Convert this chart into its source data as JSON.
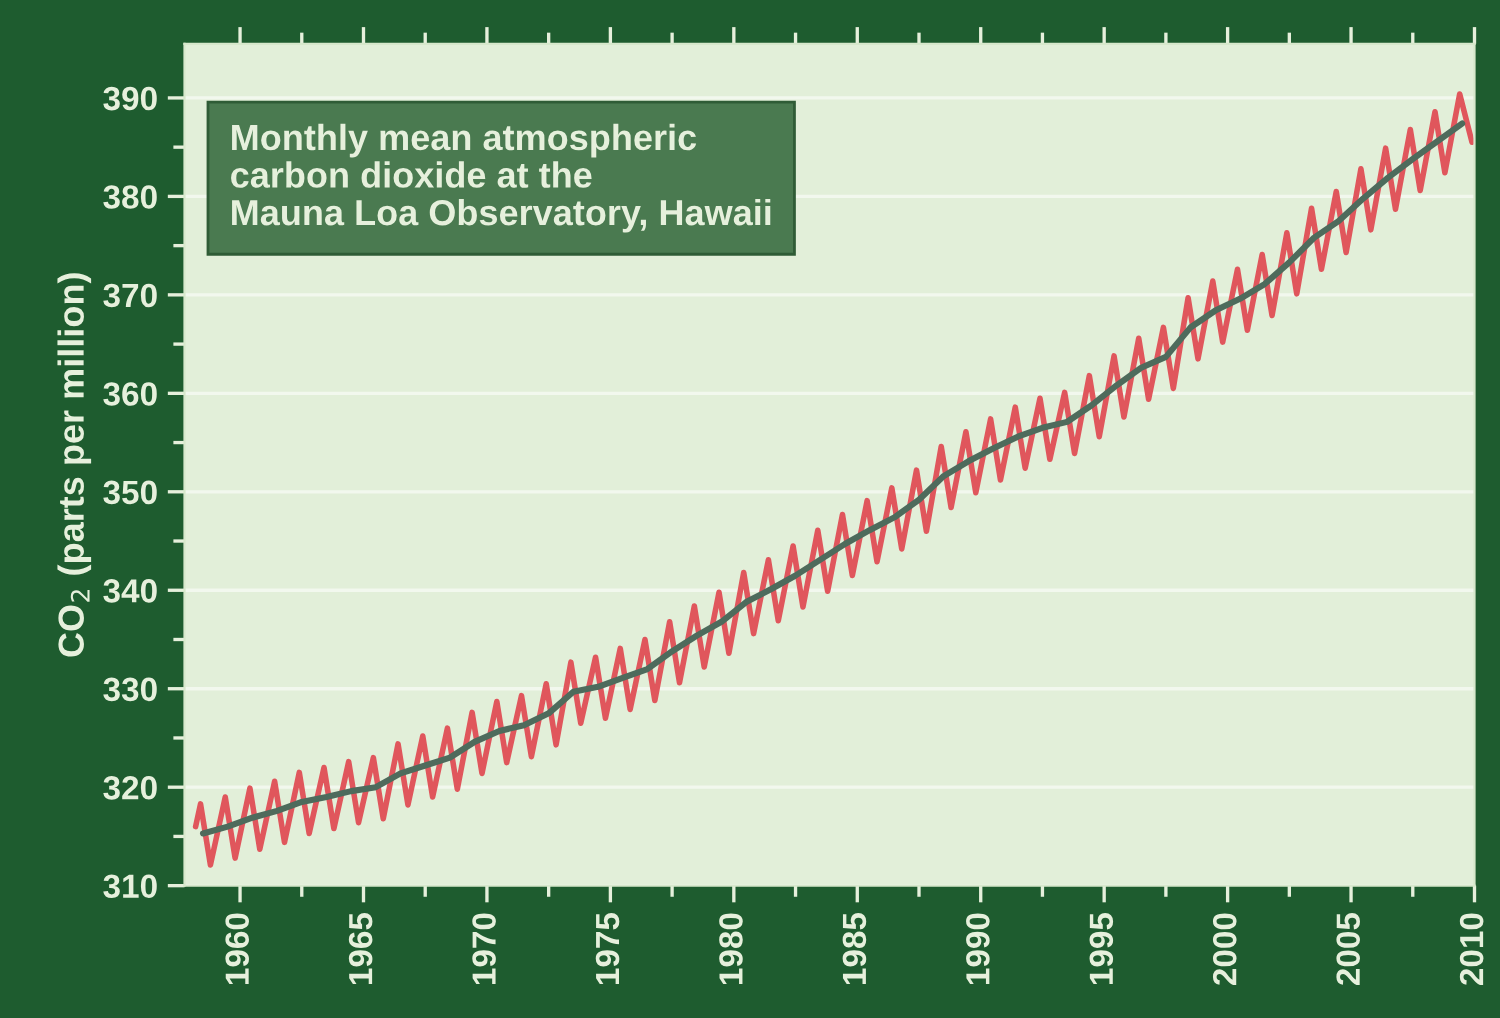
{
  "chart_data": {
    "type": "line",
    "ylabel": "CO$_{2}$ (parts per million)",
    "annotations": [
      "Monthly mean atmospheric\ncarbon dioxide at the\nMauna Loa Observatory, Hawaii"
    ],
    "series": [
      {
        "color": "#e0565c",
        "x": [
          1958.2,
          1958.4,
          1958.8,
          1959.4,
          1959.8,
          1960.4,
          1960.8,
          1961.4,
          1961.8,
          1962.4,
          1962.8,
          1963.4,
          1963.8,
          1964.4,
          1964.8,
          1965.4,
          1965.8,
          1966.4,
          1966.8,
          1967.4,
          1967.8,
          1968.4,
          1968.8,
          1969.4,
          1969.8,
          1970.4,
          1970.8,
          1971.4,
          1971.8,
          1972.4,
          1972.8,
          1973.4,
          1973.8,
          1974.4,
          1974.8,
          1975.4,
          1975.8,
          1976.4,
          1976.8,
          1977.4,
          1977.8,
          1978.4,
          1978.8,
          1979.4,
          1979.8,
          1980.4,
          1980.8,
          1981.4,
          1981.8,
          1982.4,
          1982.8,
          1983.4,
          1983.8,
          1984.4,
          1984.8,
          1985.4,
          1985.8,
          1986.4,
          1986.8,
          1987.4,
          1987.8,
          1988.4,
          1988.8,
          1989.4,
          1989.8,
          1990.4,
          1990.8,
          1991.4,
          1991.8,
          1992.4,
          1992.8,
          1993.4,
          1993.8,
          1994.4,
          1994.8,
          1995.4,
          1995.8,
          1996.4,
          1996.8,
          1997.4,
          1997.8,
          1998.4,
          1998.8,
          1999.4,
          1999.8,
          2000.4,
          2000.8,
          2001.4,
          2001.8,
          2002.4,
          2002.8,
          2003.4,
          2003.8,
          2004.4,
          2004.8,
          2005.4,
          2005.8,
          2006.4,
          2006.8,
          2007.4,
          2007.8,
          2008.4,
          2008.8,
          2009.4,
          2009.9
        ],
        "values": [
          316.0,
          318.3,
          312.1,
          319.0,
          312.8,
          319.9,
          313.7,
          320.6,
          314.4,
          321.5,
          315.3,
          322.0,
          315.8,
          322.6,
          316.4,
          323.0,
          316.8,
          324.4,
          318.2,
          325.2,
          319.0,
          326.0,
          319.8,
          327.6,
          321.4,
          328.7,
          322.5,
          329.3,
          323.1,
          330.5,
          324.3,
          332.7,
          326.5,
          333.2,
          327.0,
          334.1,
          327.9,
          335.0,
          328.8,
          336.8,
          330.6,
          338.4,
          332.2,
          339.8,
          333.6,
          341.8,
          335.6,
          343.1,
          336.9,
          344.5,
          338.3,
          346.1,
          339.9,
          347.7,
          341.5,
          349.1,
          342.9,
          350.4,
          344.2,
          352.2,
          346.0,
          354.6,
          348.4,
          356.1,
          349.9,
          357.4,
          351.2,
          358.6,
          352.4,
          359.5,
          353.3,
          360.1,
          353.9,
          361.8,
          355.6,
          363.8,
          357.6,
          365.6,
          359.4,
          366.7,
          360.5,
          369.7,
          363.5,
          371.4,
          365.2,
          372.6,
          366.4,
          374.1,
          367.9,
          376.3,
          370.1,
          378.8,
          372.6,
          380.5,
          374.3,
          382.8,
          376.6,
          384.9,
          378.7,
          386.8,
          380.6,
          388.6,
          382.4,
          390.4,
          385.5
        ]
      },
      {
        "color": "#4e6b5c",
        "x": [
          1958.5,
          1959.5,
          1960.5,
          1961.5,
          1962.5,
          1963.5,
          1964.5,
          1965.5,
          1966.5,
          1967.5,
          1968.5,
          1969.5,
          1970.5,
          1971.5,
          1972.5,
          1973.5,
          1974.5,
          1975.5,
          1976.5,
          1977.5,
          1978.5,
          1979.5,
          1980.5,
          1981.5,
          1982.5,
          1983.5,
          1984.5,
          1985.5,
          1986.5,
          1987.5,
          1988.5,
          1989.5,
          1990.5,
          1991.5,
          1992.5,
          1993.5,
          1994.5,
          1995.5,
          1996.5,
          1997.5,
          1998.5,
          1999.5,
          2000.5,
          2001.5,
          2002.5,
          2003.5,
          2004.5,
          2005.5,
          2006.5,
          2007.5,
          2008.5,
          2009.5
        ],
        "values": [
          315.3,
          316.0,
          316.9,
          317.6,
          318.5,
          319.0,
          319.6,
          320.0,
          321.4,
          322.2,
          323.0,
          324.6,
          325.7,
          326.3,
          327.5,
          329.7,
          330.2,
          331.1,
          332.0,
          333.8,
          335.4,
          336.8,
          338.8,
          340.1,
          341.5,
          343.1,
          344.7,
          346.1,
          347.4,
          349.2,
          351.6,
          353.1,
          354.4,
          355.6,
          356.5,
          357.1,
          358.8,
          360.8,
          362.6,
          363.7,
          366.7,
          368.4,
          369.6,
          371.1,
          373.3,
          375.8,
          377.5,
          379.8,
          381.9,
          383.8,
          385.6,
          387.4
        ]
      }
    ],
    "xlim": [
      1957.75,
      2010
    ],
    "xticks": [
      1960,
      {
        "value": 1962.5,
        "label": null
      },
      1965,
      {
        "value": 1967.5,
        "label": null
      },
      1970,
      {
        "value": 1972.5,
        "label": null
      },
      1975,
      {
        "value": 1977.5,
        "label": null
      },
      1980,
      {
        "value": 1982.5,
        "label": null
      },
      1985,
      {
        "value": 1987.5,
        "label": null
      },
      1990,
      {
        "value": 1992.5,
        "label": null
      },
      1995,
      {
        "value": 1997.5,
        "label": null
      },
      2000,
      {
        "value": 2002.5,
        "label": null
      },
      2005,
      {
        "value": 2007.5,
        "label": null
      },
      2010
    ],
    "ylim": [
      310,
      395.5
    ],
    "yticks": [
      310,
      {
        "value": 315,
        "label": null
      },
      320,
      {
        "value": 325,
        "label": null
      },
      330,
      {
        "value": 335,
        "label": null
      },
      340,
      {
        "value": 345,
        "label": null
      },
      350,
      {
        "value": 355,
        "label": null
      },
      360,
      {
        "value": 365,
        "label": null
      },
      370,
      {
        "value": 375,
        "label": null
      },
      380,
      {
        "value": 385,
        "label": null
      },
      390
    ],
    "grid": "y",
    "line_style": "solid"
  }
}
